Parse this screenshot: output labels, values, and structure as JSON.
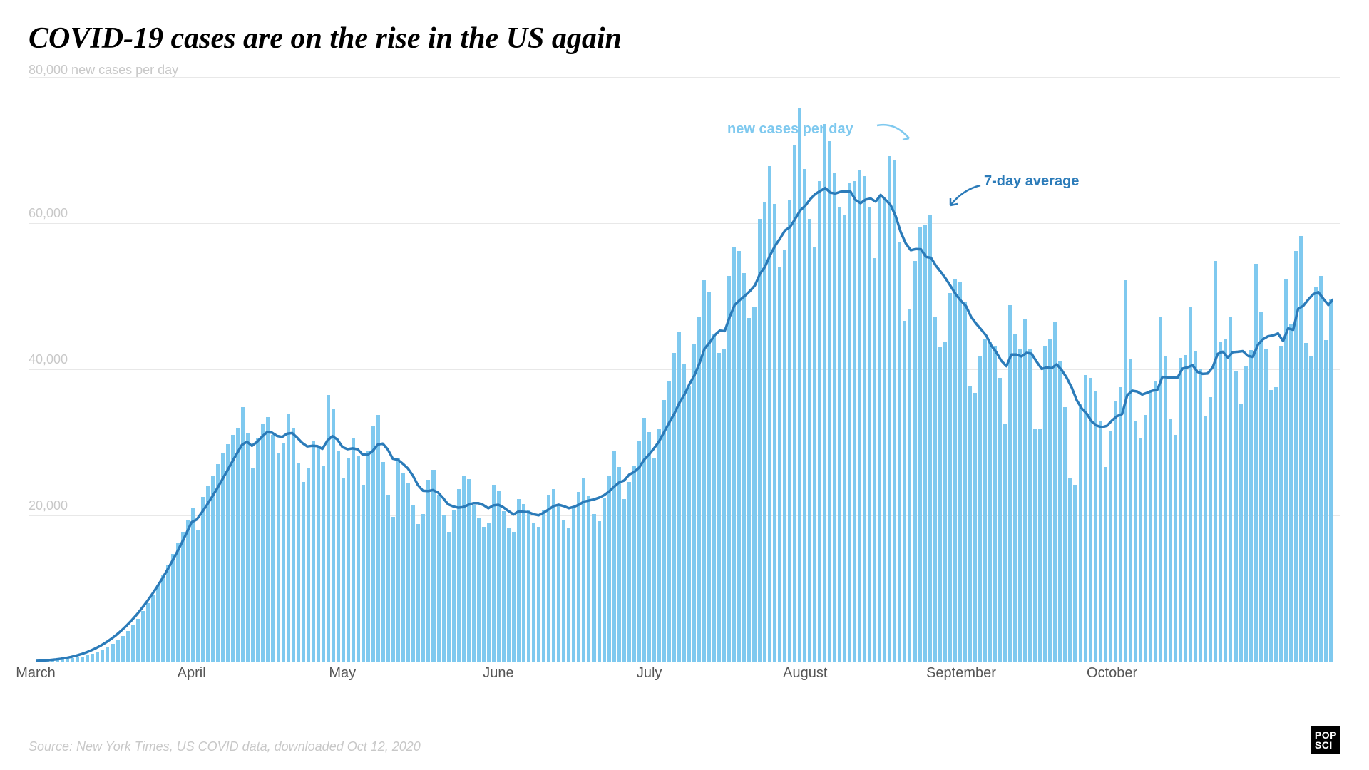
{
  "title": "COVID-19 cases are on the rise in the US again",
  "source": "Source: New York Times, US COVID data, downloaded Oct 12, 2020",
  "logo_lines": [
    "POP",
    "SCI"
  ],
  "chart": {
    "type": "bar_with_line",
    "y_axis_title": "80,000 new cases per day",
    "ylim": [
      0,
      80000
    ],
    "yticks": [
      20000,
      40000,
      60000,
      80000
    ],
    "ytick_labels": [
      "20,000",
      "40,000",
      "60,000",
      "80,000"
    ],
    "x_months": [
      "March",
      "April",
      "May",
      "June",
      "July",
      "August",
      "September",
      "October"
    ],
    "bar_color": "#7fc9ef",
    "line_color": "#2b7bb9",
    "line_width": 3.5,
    "grid_color": "#e8e8e8",
    "background_color": "#ffffff",
    "title_fontsize": 42,
    "label_fontsize": 20,
    "annotations": {
      "new_cases": {
        "label": "new cases per day",
        "color": "#7fc9ef"
      },
      "seven_day": {
        "label": "7-day average",
        "color": "#2b7bb9"
      }
    },
    "bars_new_cases": [
      100,
      120,
      150,
      180,
      220,
      280,
      350,
      450,
      560,
      700,
      880,
      1100,
      1350,
      1600,
      1950,
      2400,
      2900,
      3500,
      4200,
      5000,
      5900,
      6900,
      8000,
      9200,
      10500,
      11800,
      13200,
      14700,
      16200,
      17800,
      19400,
      21000,
      18000,
      22500,
      24000,
      25500,
      27000,
      28500,
      29800,
      31000,
      32000,
      34800,
      31200,
      26500,
      30500,
      32500,
      33500,
      31000,
      28500,
      30000,
      34000,
      32000,
      27200,
      24600,
      26500,
      30200,
      29300,
      26800,
      36500,
      34600,
      28800,
      25200,
      27800,
      30500,
      28200,
      24200,
      28800,
      32300,
      33800,
      27300,
      22800,
      19800,
      27800,
      25800,
      24400,
      21400,
      18800,
      20200,
      24900,
      26200,
      22800,
      20000,
      17800,
      20800,
      23600,
      25400,
      25000,
      21400,
      19600,
      18400,
      19000,
      24200,
      23400,
      20600,
      18200,
      17800,
      22200,
      21600,
      20800,
      19000,
      18400,
      20800,
      22800,
      23600,
      21600,
      19400,
      18200,
      21200,
      23200,
      25200,
      22600,
      20200,
      19200,
      22400,
      25400,
      28800,
      26600,
      22200,
      24600,
      26800,
      30200,
      33400,
      31400,
      27800,
      31800,
      35800,
      38400,
      42200,
      45200,
      40800,
      37800,
      43400,
      47200,
      52200,
      50600,
      44800,
      42200,
      42800,
      52800,
      56800,
      56200,
      53200,
      47000,
      48600,
      60600,
      62800,
      67800,
      62600,
      54000,
      56400,
      63200,
      70600,
      75800,
      67400,
      60600,
      56800,
      65800,
      73600,
      71200,
      66800,
      62200,
      61200,
      65600,
      65800,
      67200,
      66400,
      62200,
      55200,
      63600,
      63200,
      69200,
      68600,
      57400,
      46600,
      48200,
      54800,
      59400,
      59800,
      61200,
      47200,
      43000,
      43800,
      50400,
      52400,
      52000,
      49200,
      37800,
      36800,
      41800,
      44200,
      43800,
      43200,
      38800,
      32600,
      48800,
      44800,
      42800,
      46800,
      42800,
      31800,
      31800,
      43200,
      44200,
      46400,
      41200,
      34800,
      25200,
      24200,
      35200,
      39200,
      38800,
      37000,
      33000,
      26600,
      31600,
      35600,
      37600,
      52200,
      41400,
      33000,
      30600,
      33800,
      37200,
      38400,
      47200,
      41800,
      33200,
      31000,
      41600,
      42000,
      48600,
      42400,
      40000,
      33600,
      36200,
      54800,
      43800,
      44200,
      47200,
      39800,
      35200,
      40400,
      42600,
      54400,
      47800,
      42800,
      37200,
      37600,
      43200,
      52400,
      46200,
      56200,
      58200,
      43600,
      41800,
      51200,
      52800,
      44000,
      49600
    ],
    "line_7day_avg": [
      100,
      140,
      180,
      230,
      300,
      390,
      500,
      640,
      810,
      1010,
      1250,
      1530,
      1850,
      2220,
      2640,
      3110,
      3640,
      4230,
      4880,
      5590,
      6360,
      7200,
      8100,
      9060,
      10090,
      11180,
      12340,
      13560,
      14840,
      16190,
      17600,
      19070,
      19430,
      20370,
      21390,
      22470,
      23600,
      24790,
      26010,
      27260,
      28460,
      29650,
      30090,
      29530,
      30060,
      30770,
      31400,
      31330,
      30880,
      30740,
      31200,
      31280,
      30640,
      29920,
      29440,
      29530,
      29490,
      29110,
      30230,
      30860,
      30380,
      29360,
      29070,
      29180,
      29060,
      28340,
      28290,
      28820,
      29690,
      29830,
      29040,
      27770,
      27620,
      27070,
      26440,
      25440,
      24160,
      23380,
      23340,
      23470,
      23140,
      22390,
      21530,
      21240,
      21060,
      21140,
      21450,
      21680,
      21690,
      21430,
      20990,
      21380,
      21460,
      21110,
      20600,
      20140,
      20550,
      20500,
      20440,
      20170,
      20020,
      20370,
      20830,
      21290,
      21470,
      21280,
      21000,
      21170,
      21470,
      21890,
      22040,
      22200,
      22430,
      22770,
      23280,
      23940,
      24510,
      24780,
      25580,
      25960,
      26560,
      27650,
      28370,
      29230,
      30200,
      31480,
      32750,
      33980,
      35420,
      36570,
      38000,
      39200,
      40860,
      42850,
      43660,
      44660,
      45290,
      45230,
      47200,
      48830,
      49480,
      50060,
      50700,
      51480,
      53050,
      54030,
      55580,
      56900,
      57900,
      59010,
      59460,
      60580,
      61740,
      62370,
      63290,
      63990,
      64410,
      64820,
      64180,
      64060,
      64290,
      64360,
      64320,
      63180,
      62740,
      63230,
      63380,
      62960,
      63860,
      63180,
      62460,
      60930,
      58770,
      57220,
      56300,
      56470,
      56430,
      55390,
      55270,
      54170,
      53300,
      52350,
      51290,
      50200,
      49350,
      48610,
      47150,
      46230,
      45430,
      44590,
      43260,
      42310,
      41160,
      40430,
      42030,
      42020,
      41760,
      42250,
      42140,
      41040,
      40060,
      40260,
      40170,
      40680,
      39880,
      38830,
      37470,
      35750,
      34620,
      33900,
      32830,
      32280,
      32080,
      32270,
      33010,
      33600,
      33880,
      36440,
      37080,
      36970,
      36550,
      36810,
      37070,
      37190,
      38970,
      38900,
      38870,
      38840,
      40100,
      40270,
      40560,
      39650,
      39380,
      39420,
      40270,
      42110,
      42410,
      41620,
      42340,
      42400,
      42490,
      41850,
      41690,
      43380,
      44120,
      44520,
      44630,
      44920,
      43860,
      45600,
      45400,
      48280,
      48680,
      49530,
      50280,
      50570,
      49670,
      48800,
      49600
    ]
  }
}
